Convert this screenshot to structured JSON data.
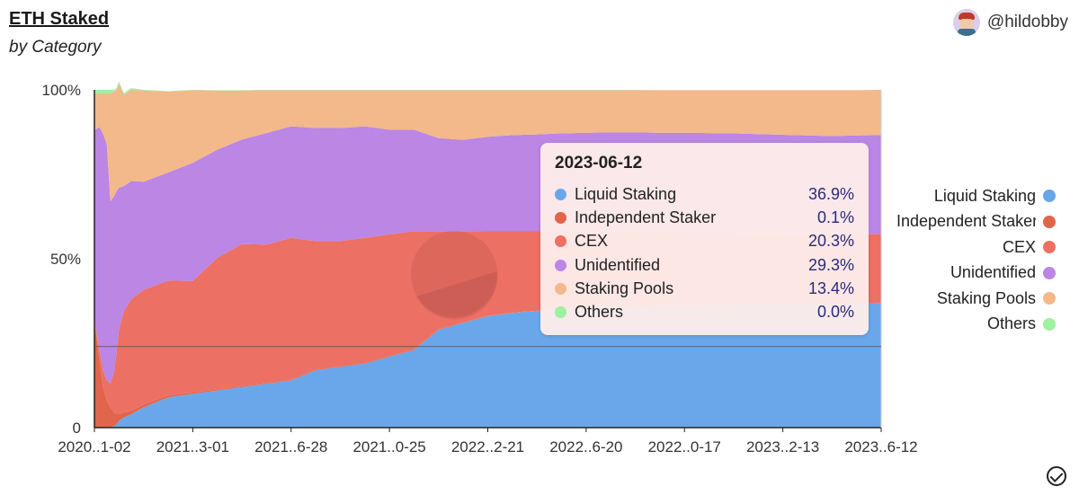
{
  "header": {
    "title": "ETH Staked",
    "subtitle": "by Category",
    "author": "@hildobby"
  },
  "tooltip": {
    "date": "2023-06-12",
    "rows": [
      {
        "name": "Liquid Staking",
        "value": "36.9%"
      },
      {
        "name": "Independent Staker",
        "value": "0.1%"
      },
      {
        "name": "CEX",
        "value": "20.3%"
      },
      {
        "name": "Unidentified",
        "value": "29.3%"
      },
      {
        "name": "Staking Pools",
        "value": "13.4%"
      },
      {
        "name": "Others",
        "value": "0.0%"
      }
    ]
  },
  "legend": [
    {
      "name": "Liquid Staking",
      "color": "#6aa7ea"
    },
    {
      "name": "Independent Staker",
      "color": "#e0654a"
    },
    {
      "name": "CEX",
      "color": "#ec7063"
    },
    {
      "name": "Unidentified",
      "color": "#bb86e4"
    },
    {
      "name": "Staking Pools",
      "color": "#f3b98a"
    },
    {
      "name": "Others",
      "color": "#9ff0a0"
    }
  ],
  "chart_data": {
    "type": "area",
    "stacked": true,
    "normalized": true,
    "ylim": [
      0,
      100
    ],
    "y_ticks": [
      "0",
      "50%",
      "100%"
    ],
    "x_tick_labels": [
      "2020..1-02",
      "2021..3-01",
      "2021..6-28",
      "2021..0-25",
      "2022..2-21",
      "2022..6-20",
      "2022..0-17",
      "2023..2-13",
      "2023..6-12"
    ],
    "x": [
      0,
      0.2,
      0.35,
      0.5,
      0.65,
      0.8,
      0.9,
      1.0,
      1.2,
      1.5,
      2,
      3,
      4,
      5,
      6,
      7,
      8,
      9,
      10,
      11,
      12,
      13,
      14,
      15,
      16,
      17,
      18,
      19,
      20,
      21,
      22,
      23,
      24,
      25,
      26,
      27,
      28,
      29,
      30,
      31,
      32
    ],
    "series": [
      {
        "name": "Liquid Staking",
        "color": "#6aa7ea",
        "values": [
          0,
          0,
          0,
          0,
          0,
          0.5,
          1,
          2,
          3,
          4,
          6,
          9,
          10,
          11,
          12,
          13,
          14,
          17,
          18,
          19,
          21,
          23,
          29,
          31,
          33,
          34,
          34.5,
          35,
          35.5,
          35.8,
          36,
          36.1,
          36.2,
          36.3,
          36.4,
          36.5,
          36.6,
          36.7,
          36.7,
          36.8,
          36.9
        ]
      },
      {
        "name": "Independent Staker",
        "color": "#e0654a",
        "values": [
          32,
          20,
          12,
          8,
          6,
          4,
          3,
          2,
          1.5,
          1,
          0.8,
          0.5,
          0.4,
          0.3,
          0.3,
          0.2,
          0.2,
          0.2,
          0.2,
          0.2,
          0.2,
          0.2,
          0.2,
          0.2,
          0.1,
          0.1,
          0.1,
          0.1,
          0.1,
          0.1,
          0.1,
          0.1,
          0.1,
          0.1,
          0.1,
          0.1,
          0.1,
          0.1,
          0.1,
          0.1,
          0.1
        ]
      },
      {
        "name": "CEX",
        "color": "#ec7063",
        "values": [
          0,
          3,
          5,
          6,
          7,
          12,
          18,
          25,
          30,
          33,
          34,
          34,
          33,
          39,
          42,
          41,
          42,
          38,
          37,
          37,
          36,
          35,
          29,
          27,
          25,
          24,
          23.5,
          23,
          22.5,
          22.2,
          22,
          21.8,
          21.5,
          21.3,
          21.2,
          21,
          20.8,
          20.6,
          20.5,
          20.4,
          20.3
        ]
      },
      {
        "name": "Unidentified",
        "color": "#bb86e4",
        "values": [
          56,
          66,
          70,
          70,
          54,
          52,
          48,
          42,
          37,
          35,
          32,
          32,
          35,
          32,
          31,
          33,
          33,
          33.5,
          33.5,
          33,
          31,
          30,
          27.5,
          27,
          28,
          28.5,
          28.7,
          29,
          29.2,
          29.3,
          29.3,
          29.3,
          29.5,
          29.5,
          29.4,
          29.3,
          29.2,
          29.1,
          29.0,
          29.2,
          29.3
        ]
      },
      {
        "name": "Staking Pools",
        "color": "#f3b98a",
        "values": [
          11,
          10,
          12,
          15,
          32,
          31,
          30,
          31,
          27,
          27,
          27,
          24,
          21.5,
          17.5,
          14.5,
          12.7,
          10.7,
          11.2,
          11.2,
          10.7,
          11.7,
          11.7,
          14.2,
          14.7,
          13.8,
          13.3,
          13.1,
          12.8,
          12.6,
          12.5,
          12.5,
          12.6,
          12.6,
          12.7,
          12.8,
          13.0,
          13.2,
          13.4,
          13.6,
          13.4,
          13.4
        ]
      },
      {
        "name": "Others",
        "color": "#9ff0a0",
        "values": [
          1,
          1,
          1,
          1,
          1,
          0.5,
          0.5,
          0.5,
          0.5,
          0.5,
          0.2,
          0.1,
          0.1,
          0.1,
          0.1,
          0.1,
          0.1,
          0.1,
          0.1,
          0.1,
          0.1,
          0.1,
          0.1,
          0.1,
          0.1,
          0.1,
          0.1,
          0.1,
          0.1,
          0.1,
          0.1,
          0,
          0,
          0,
          0,
          0,
          0,
          0,
          0,
          0,
          0
        ]
      }
    ],
    "hover_x": 32,
    "crosshair_y": 24
  }
}
